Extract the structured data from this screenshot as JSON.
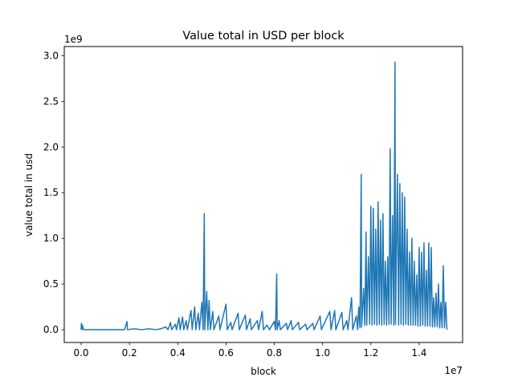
{
  "chart_data": {
    "type": "line",
    "title": "Value total in USD per block",
    "xlabel": "block",
    "ylabel": "value total in usd",
    "x_offset_label": "1e7",
    "y_offset_label": "1e9",
    "xlim": [
      -0.07,
      1.58
    ],
    "ylim": [
      -0.14,
      3.1
    ],
    "x_ticks": [
      "0.0",
      "0.2",
      "0.4",
      "0.6",
      "0.8",
      "1.0",
      "1.2",
      "1.4"
    ],
    "y_ticks": [
      "0.0",
      "0.5",
      "1.0",
      "1.5",
      "2.0",
      "2.5",
      "3.0"
    ],
    "grid": false,
    "color": "#1f77b4",
    "series": [
      {
        "points": [
          [
            0.0,
            0.0
          ],
          [
            0.001,
            0.07
          ],
          [
            0.003,
            0.0
          ],
          [
            0.005,
            0.05
          ],
          [
            0.01,
            0.0
          ],
          [
            0.03,
            0.0
          ],
          [
            0.06,
            0.0
          ],
          [
            0.1,
            0.0
          ],
          [
            0.14,
            0.0
          ],
          [
            0.18,
            0.0
          ],
          [
            0.19,
            0.09
          ],
          [
            0.192,
            0.0
          ],
          [
            0.22,
            0.01
          ],
          [
            0.25,
            0.0
          ],
          [
            0.28,
            0.01
          ],
          [
            0.31,
            0.0
          ],
          [
            0.33,
            0.01
          ],
          [
            0.35,
            0.03
          ],
          [
            0.36,
            0.0
          ],
          [
            0.37,
            0.08
          ],
          [
            0.375,
            0.0
          ],
          [
            0.39,
            0.06
          ],
          [
            0.395,
            0.0
          ],
          [
            0.405,
            0.13
          ],
          [
            0.41,
            0.0
          ],
          [
            0.42,
            0.14
          ],
          [
            0.425,
            0.0
          ],
          [
            0.435,
            0.1
          ],
          [
            0.44,
            0.0
          ],
          [
            0.455,
            0.21
          ],
          [
            0.46,
            0.0
          ],
          [
            0.47,
            0.25
          ],
          [
            0.475,
            0.0
          ],
          [
            0.485,
            0.18
          ],
          [
            0.49,
            0.0
          ],
          [
            0.5,
            0.3
          ],
          [
            0.505,
            0.0
          ],
          [
            0.51,
            1.27
          ],
          [
            0.512,
            0.0
          ],
          [
            0.52,
            0.42
          ],
          [
            0.525,
            0.0
          ],
          [
            0.53,
            0.32
          ],
          [
            0.535,
            0.0
          ],
          [
            0.545,
            0.2
          ],
          [
            0.55,
            0.0
          ],
          [
            0.57,
            0.15
          ],
          [
            0.575,
            0.0
          ],
          [
            0.6,
            0.28
          ],
          [
            0.605,
            0.0
          ],
          [
            0.62,
            0.08
          ],
          [
            0.625,
            0.0
          ],
          [
            0.65,
            0.18
          ],
          [
            0.655,
            0.0
          ],
          [
            0.68,
            0.16
          ],
          [
            0.685,
            0.0
          ],
          [
            0.7,
            0.12
          ],
          [
            0.705,
            0.0
          ],
          [
            0.73,
            0.1
          ],
          [
            0.735,
            0.0
          ],
          [
            0.75,
            0.2
          ],
          [
            0.755,
            0.0
          ],
          [
            0.77,
            0.05
          ],
          [
            0.78,
            0.0
          ],
          [
            0.8,
            0.09
          ],
          [
            0.805,
            0.0
          ],
          [
            0.81,
            0.61
          ],
          [
            0.812,
            0.0
          ],
          [
            0.82,
            0.1
          ],
          [
            0.825,
            0.0
          ],
          [
            0.85,
            0.07
          ],
          [
            0.855,
            0.0
          ],
          [
            0.87,
            0.1
          ],
          [
            0.875,
            0.0
          ],
          [
            0.9,
            0.08
          ],
          [
            0.905,
            0.0
          ],
          [
            0.93,
            0.06
          ],
          [
            0.935,
            0.0
          ],
          [
            0.96,
            0.07
          ],
          [
            0.965,
            0.0
          ],
          [
            0.99,
            0.15
          ],
          [
            0.995,
            0.0
          ],
          [
            1.03,
            0.2
          ],
          [
            1.035,
            0.0
          ],
          [
            1.05,
            0.21
          ],
          [
            1.055,
            0.0
          ],
          [
            1.08,
            0.19
          ],
          [
            1.085,
            0.0
          ],
          [
            1.1,
            0.1
          ],
          [
            1.105,
            0.0
          ],
          [
            1.12,
            0.35
          ],
          [
            1.125,
            0.0
          ],
          [
            1.13,
            0.05
          ],
          [
            1.14,
            0.15
          ],
          [
            1.145,
            0.0
          ],
          [
            1.15,
            0.25
          ],
          [
            1.155,
            0.02
          ],
          [
            1.16,
            1.7
          ],
          [
            1.162,
            0.03
          ],
          [
            1.17,
            0.45
          ],
          [
            1.175,
            0.05
          ],
          [
            1.18,
            1.07
          ],
          [
            1.183,
            0.05
          ],
          [
            1.19,
            0.8
          ],
          [
            1.195,
            0.06
          ],
          [
            1.2,
            1.35
          ],
          [
            1.205,
            0.05
          ],
          [
            1.21,
            1.33
          ],
          [
            1.215,
            0.06
          ],
          [
            1.22,
            1.1
          ],
          [
            1.225,
            0.05
          ],
          [
            1.23,
            1.4
          ],
          [
            1.235,
            0.06
          ],
          [
            1.24,
            1.2
          ],
          [
            1.245,
            0.05
          ],
          [
            1.25,
            1.27
          ],
          [
            1.255,
            0.06
          ],
          [
            1.26,
            0.75
          ],
          [
            1.265,
            0.05
          ],
          [
            1.27,
            0.8
          ],
          [
            1.275,
            0.06
          ],
          [
            1.28,
            1.98
          ],
          [
            1.284,
            0.06
          ],
          [
            1.29,
            1.25
          ],
          [
            1.295,
            0.05
          ],
          [
            1.3,
            2.93
          ],
          [
            1.302,
            0.06
          ],
          [
            1.31,
            1.7
          ],
          [
            1.315,
            0.05
          ],
          [
            1.32,
            1.6
          ],
          [
            1.325,
            0.06
          ],
          [
            1.33,
            1.5
          ],
          [
            1.335,
            0.05
          ],
          [
            1.34,
            1.45
          ],
          [
            1.345,
            0.06
          ],
          [
            1.35,
            1.1
          ],
          [
            1.355,
            0.05
          ],
          [
            1.36,
            0.85
          ],
          [
            1.365,
            0.05
          ],
          [
            1.37,
            1.0
          ],
          [
            1.375,
            0.05
          ],
          [
            1.38,
            0.75
          ],
          [
            1.385,
            0.05
          ],
          [
            1.39,
            0.6
          ],
          [
            1.395,
            0.04
          ],
          [
            1.4,
            0.9
          ],
          [
            1.405,
            0.04
          ],
          [
            1.41,
            0.85
          ],
          [
            1.415,
            0.05
          ],
          [
            1.42,
            0.95
          ],
          [
            1.425,
            0.04
          ],
          [
            1.43,
            0.65
          ],
          [
            1.435,
            0.04
          ],
          [
            1.44,
            0.95
          ],
          [
            1.445,
            0.04
          ],
          [
            1.45,
            0.9
          ],
          [
            1.455,
            0.03
          ],
          [
            1.46,
            0.35
          ],
          [
            1.465,
            0.03
          ],
          [
            1.47,
            0.4
          ],
          [
            1.475,
            0.03
          ],
          [
            1.48,
            0.5
          ],
          [
            1.485,
            0.02
          ],
          [
            1.49,
            0.3
          ],
          [
            1.495,
            0.02
          ],
          [
            1.5,
            0.7
          ],
          [
            1.505,
            0.02
          ],
          [
            1.51,
            0.3
          ],
          [
            1.515,
            0.0
          ]
        ]
      }
    ]
  }
}
